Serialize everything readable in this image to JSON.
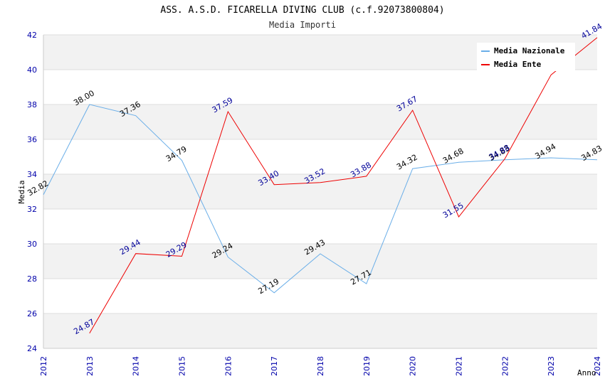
{
  "chart_data": {
    "type": "line",
    "title": "ASS. A.S.D. FICARELLA DIVING CLUB (c.f.92073800804)",
    "subtitle": "Media Importi",
    "xlabel": "Anno",
    "ylabel": "Media",
    "x": [
      "2012",
      "2013",
      "2014",
      "2015",
      "2016",
      "2017",
      "2018",
      "2019",
      "2020",
      "2021",
      "2022",
      "2023",
      "2024"
    ],
    "ylim": [
      24,
      42
    ],
    "yticks": [
      "24",
      "26",
      "28",
      "30",
      "32",
      "34",
      "36",
      "38",
      "40",
      "42"
    ],
    "grid": true,
    "legend_position": "top-right",
    "series": [
      {
        "name": "Media Nazionale",
        "color": "#6aaee8",
        "label_color": "#000000",
        "values": [
          32.82,
          38.0,
          37.36,
          34.79,
          29.24,
          27.19,
          29.43,
          27.71,
          34.32,
          34.68,
          34.83,
          34.94,
          34.83
        ],
        "labels": [
          "32.82",
          "38.00",
          "37.36",
          "34.79",
          "29.24",
          "27.19",
          "29.43",
          "27.71",
          "34.32",
          "34.68",
          "34.83",
          "34.94",
          "34.83"
        ]
      },
      {
        "name": "Media Ente",
        "color": "#ee0000",
        "label_color": "#000099",
        "values": [
          null,
          24.87,
          29.44,
          29.29,
          37.59,
          33.4,
          33.52,
          33.88,
          37.67,
          31.55,
          34.88,
          39.7,
          41.84
        ],
        "labels": [
          null,
          "24.87",
          "29.44",
          "29.29",
          "37.59",
          "33.40",
          "33.52",
          "33.88",
          "37.67",
          "31.55",
          "34.88",
          null,
          "41.84"
        ]
      }
    ]
  }
}
